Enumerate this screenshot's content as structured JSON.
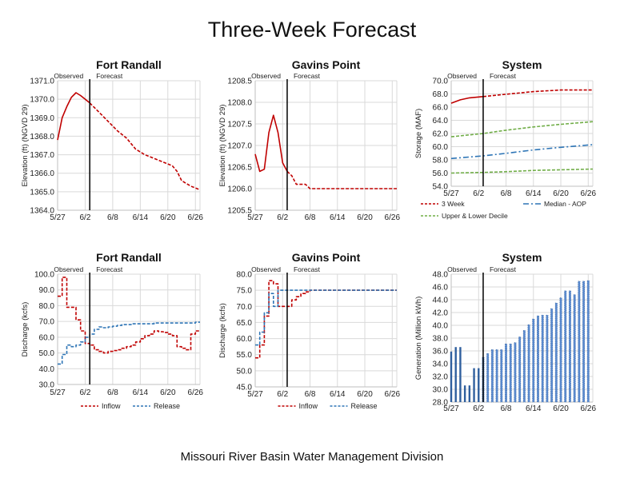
{
  "title": "Three-Week Forecast",
  "footer": "Missouri River Basin Water Management Division",
  "colors": {
    "red": "#c00000",
    "blue": "#2e75b6",
    "green": "#70ad47",
    "black": "#000000",
    "grid": "#d9d9d9",
    "bar": "#4472c4"
  },
  "chart_data": [
    {
      "id": "fr-elev",
      "type": "line",
      "title": "Fort Randall",
      "ylabel": "Elevation (ft) (NGVD 29)",
      "xlabel": "",
      "period_labels": [
        "Observed",
        "Forecast"
      ],
      "x_ticks": [
        "5/27",
        "6/2",
        "6/8",
        "6/14",
        "6/20",
        "6/26"
      ],
      "xlim": [
        "5/27",
        "6/27"
      ],
      "ylim": [
        1364.0,
        1371.0
      ],
      "y_ticks": [
        "1364.0",
        "1365.0",
        "1366.0",
        "1367.0",
        "1368.0",
        "1369.0",
        "1370.0",
        "1371.0"
      ],
      "grid": true,
      "divider": "6/3",
      "series": [
        {
          "style": "solid",
          "color": "red",
          "x": [
            "5/27",
            "5/28",
            "5/29",
            "5/30",
            "5/31",
            "6/1",
            "6/2",
            "6/3"
          ],
          "y": [
            1367.8,
            1369.0,
            1369.6,
            1370.1,
            1370.35,
            1370.2,
            1370.0,
            1369.8
          ]
        },
        {
          "style": "dashed",
          "color": "red",
          "x": [
            "6/3",
            "6/5",
            "6/7",
            "6/9",
            "6/11",
            "6/13",
            "6/15",
            "6/17",
            "6/19",
            "6/21",
            "6/22",
            "6/23",
            "6/25",
            "6/27"
          ],
          "y": [
            1369.8,
            1369.3,
            1368.8,
            1368.3,
            1367.9,
            1367.3,
            1367.0,
            1366.8,
            1366.6,
            1366.4,
            1366.1,
            1365.6,
            1365.3,
            1365.1
          ]
        }
      ]
    },
    {
      "id": "gp-elev",
      "type": "line",
      "title": "Gavins Point",
      "ylabel": "Elevation (ft) (NGVD 29)",
      "xlabel": "",
      "period_labels": [
        "Observed",
        "Forecast"
      ],
      "x_ticks": [
        "5/27",
        "6/2",
        "6/8",
        "6/14",
        "6/20",
        "6/26"
      ],
      "xlim": [
        "5/27",
        "6/27"
      ],
      "ylim": [
        1205.5,
        1208.5
      ],
      "y_ticks": [
        "1205.5",
        "1206.0",
        "1206.5",
        "1207.0",
        "1207.5",
        "1208.0",
        "1208.5"
      ],
      "grid": true,
      "divider": "6/3",
      "series": [
        {
          "style": "solid",
          "color": "red",
          "x": [
            "5/27",
            "5/28",
            "5/29",
            "5/30",
            "5/31",
            "6/1",
            "6/2",
            "6/3"
          ],
          "y": [
            1206.8,
            1206.4,
            1206.45,
            1207.3,
            1207.7,
            1207.3,
            1206.6,
            1206.4
          ]
        },
        {
          "style": "dashed",
          "color": "red",
          "x": [
            "6/3",
            "6/4",
            "6/5",
            "6/6",
            "6/7",
            "6/8",
            "6/9",
            "6/27"
          ],
          "y": [
            1206.4,
            1206.3,
            1206.1,
            1206.1,
            1206.1,
            1206.0,
            1206.0,
            1206.0
          ]
        }
      ]
    },
    {
      "id": "sys-storage",
      "type": "line",
      "title": "System",
      "ylabel": "Storage (MAF)",
      "xlabel": "",
      "period_labels": [
        "Observed",
        "Forecast"
      ],
      "x_ticks": [
        "5/27",
        "6/2",
        "6/8",
        "6/14",
        "6/20",
        "6/26"
      ],
      "xlim": [
        "5/27",
        "6/27"
      ],
      "ylim": [
        54.0,
        70.0
      ],
      "y_ticks": [
        "54.0",
        "56.0",
        "58.0",
        "60.0",
        "62.0",
        "64.0",
        "66.0",
        "68.0",
        "70.0"
      ],
      "grid": true,
      "divider": "6/3",
      "series": [
        {
          "name": "3 Week",
          "legend": true,
          "style": "solid",
          "color": "red",
          "x": [
            "5/27",
            "5/29",
            "5/31",
            "6/3"
          ],
          "y": [
            66.6,
            67.1,
            67.4,
            67.6
          ]
        },
        {
          "name": "3 Week",
          "legend": false,
          "style": "dashed",
          "color": "red",
          "x": [
            "6/3",
            "6/8",
            "6/14",
            "6/20",
            "6/27"
          ],
          "y": [
            67.6,
            67.95,
            68.35,
            68.6,
            68.6
          ]
        },
        {
          "name": "Median - AOP",
          "legend": true,
          "style": "dashdot",
          "color": "blue",
          "x": [
            "5/27",
            "6/3",
            "6/8",
            "6/14",
            "6/20",
            "6/27"
          ],
          "y": [
            58.2,
            58.6,
            59.0,
            59.5,
            59.9,
            60.3
          ]
        },
        {
          "name": "Upper & Lower Decile",
          "legend": true,
          "style": "dashed",
          "color": "green",
          "x": [
            "5/27",
            "6/3",
            "6/8",
            "6/14",
            "6/20",
            "6/27"
          ],
          "y": [
            61.5,
            62.0,
            62.5,
            63.0,
            63.4,
            63.8
          ]
        },
        {
          "name": "Upper & Lower Decile",
          "legend": false,
          "style": "dashed",
          "color": "green",
          "x": [
            "5/27",
            "6/3",
            "6/8",
            "6/14",
            "6/20",
            "6/27"
          ],
          "y": [
            56.0,
            56.1,
            56.2,
            56.4,
            56.5,
            56.6
          ]
        }
      ]
    },
    {
      "id": "fr-flow",
      "type": "line",
      "title": "Fort Randall",
      "ylabel": "Discharge (kcfs)",
      "xlabel": "",
      "period_labels": [
        "Observed",
        "Forecast"
      ],
      "x_ticks": [
        "5/27",
        "6/2",
        "6/8",
        "6/14",
        "6/20",
        "6/26"
      ],
      "xlim": [
        "5/27",
        "6/27"
      ],
      "ylim": [
        30.0,
        100.0
      ],
      "y_ticks": [
        "30.0",
        "40.0",
        "50.0",
        "60.0",
        "70.0",
        "80.0",
        "90.0",
        "100.0"
      ],
      "grid": true,
      "divider": "6/3",
      "legend": [
        "Inflow",
        "Release"
      ],
      "series": [
        {
          "name": "Inflow",
          "style": "dashed",
          "color": "red",
          "step": true,
          "x": [
            "5/27",
            "5/28",
            "5/29",
            "5/30",
            "5/31",
            "6/1",
            "6/2",
            "6/3",
            "6/4",
            "6/5",
            "6/6",
            "6/7",
            "6/8",
            "6/9",
            "6/10",
            "6/11",
            "6/12",
            "6/13",
            "6/14",
            "6/15",
            "6/16",
            "6/17",
            "6/18",
            "6/19",
            "6/20",
            "6/21",
            "6/22",
            "6/23",
            "6/24",
            "6/25",
            "6/26",
            "6/27"
          ],
          "y": [
            86,
            98,
            79,
            79,
            71,
            64,
            56,
            55,
            52,
            51,
            50,
            51,
            51.5,
            52,
            53,
            54,
            55,
            57,
            59,
            61,
            62,
            64,
            63.5,
            63,
            62,
            61,
            54,
            53,
            52,
            62,
            64,
            64
          ]
        },
        {
          "name": "Release",
          "style": "dashed",
          "color": "blue",
          "step": true,
          "x": [
            "5/27",
            "5/28",
            "5/29",
            "5/30",
            "5/31",
            "6/1",
            "6/2",
            "6/3",
            "6/4",
            "6/5",
            "6/6",
            "6/7",
            "6/8",
            "6/9",
            "6/10",
            "6/11",
            "6/12",
            "6/13",
            "6/14",
            "6/15",
            "6/16",
            "6/17",
            "6/18",
            "6/19",
            "6/20",
            "6/21",
            "6/22",
            "6/23",
            "6/24",
            "6/25",
            "6/26",
            "6/27"
          ],
          "y": [
            43,
            49,
            55,
            54,
            55,
            57,
            60,
            62,
            65,
            66.5,
            66,
            66.5,
            67,
            67.5,
            68,
            68,
            68.5,
            68.5,
            68.5,
            68.5,
            68.5,
            69,
            69,
            69,
            69,
            69,
            69,
            69,
            69,
            69,
            69.5,
            69.5
          ]
        }
      ]
    },
    {
      "id": "gp-flow",
      "type": "line",
      "title": "Gavins Point",
      "ylabel": "Discharge (kcfs)",
      "xlabel": "",
      "period_labels": [
        "Observed",
        "Forecast"
      ],
      "x_ticks": [
        "5/27",
        "6/2",
        "6/8",
        "6/14",
        "6/20",
        "6/26"
      ],
      "xlim": [
        "5/27",
        "6/27"
      ],
      "ylim": [
        45.0,
        80.0
      ],
      "y_ticks": [
        "45.0",
        "50.0",
        "55.0",
        "60.0",
        "65.0",
        "70.0",
        "75.0",
        "80.0"
      ],
      "grid": true,
      "divider": "6/3",
      "legend": [
        "Inflow",
        "Release"
      ],
      "series": [
        {
          "name": "Inflow",
          "style": "dashed",
          "color": "red",
          "step": true,
          "x": [
            "5/27",
            "5/28",
            "5/29",
            "5/30",
            "5/31",
            "6/1",
            "6/2",
            "6/3",
            "6/4",
            "6/5",
            "6/6",
            "6/7",
            "6/8",
            "6/9",
            "6/27"
          ],
          "y": [
            54,
            58,
            67,
            78,
            77,
            70,
            70,
            70,
            72,
            73,
            74,
            74.5,
            75,
            75,
            75
          ]
        },
        {
          "name": "Release",
          "style": "dashed",
          "color": "blue",
          "step": true,
          "x": [
            "5/27",
            "5/28",
            "5/29",
            "5/30",
            "5/31",
            "6/1",
            "6/2",
            "6/3",
            "6/10",
            "6/27"
          ],
          "y": [
            58,
            62,
            68,
            74,
            70,
            75,
            75,
            75,
            75,
            75
          ]
        }
      ]
    },
    {
      "id": "sys-gen",
      "type": "bar",
      "title": "System",
      "ylabel": "Generation (Million kWh)",
      "xlabel": "",
      "period_labels": [
        "Observed",
        "Forecast"
      ],
      "x_ticks": [
        "5/27",
        "6/2",
        "6/8",
        "6/14",
        "6/20",
        "6/26"
      ],
      "xlim": [
        "5/27",
        "6/27"
      ],
      "ylim": [
        28.0,
        48.0
      ],
      "y_ticks": [
        "28.0",
        "30.0",
        "32.0",
        "34.0",
        "36.0",
        "38.0",
        "40.0",
        "42.0",
        "44.0",
        "46.0",
        "48.0"
      ],
      "grid": true,
      "divider": "6/3",
      "x": [
        "5/27",
        "5/28",
        "5/29",
        "5/30",
        "5/31",
        "6/1",
        "6/2",
        "6/3",
        "6/4",
        "6/5",
        "6/6",
        "6/7",
        "6/8",
        "6/9",
        "6/10",
        "6/11",
        "6/12",
        "6/13",
        "6/14",
        "6/15",
        "6/16",
        "6/17",
        "6/18",
        "6/19",
        "6/20",
        "6/21",
        "6/22",
        "6/23",
        "6/24",
        "6/25",
        "6/26"
      ],
      "values": [
        35.9,
        36.6,
        36.6,
        30.6,
        30.6,
        33.3,
        33.3,
        35.0,
        35.6,
        36.2,
        36.2,
        36.2,
        37.1,
        37.1,
        37.3,
        38.2,
        39.2,
        40.1,
        41.0,
        41.5,
        41.6,
        41.6,
        42.6,
        43.5,
        44.3,
        45.4,
        45.4,
        44.8,
        46.9,
        46.9,
        47.0
      ],
      "observed_count": 7
    }
  ]
}
